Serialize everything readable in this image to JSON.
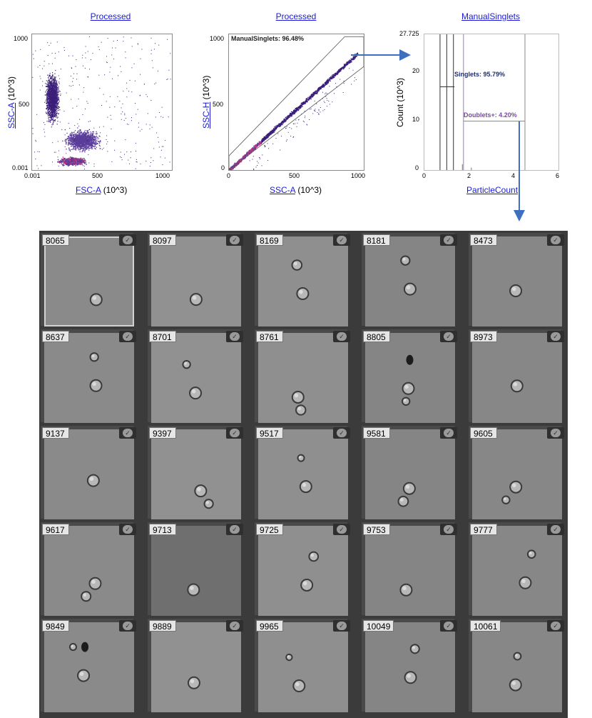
{
  "plots": {
    "p1": {
      "title": "Processed",
      "xlabel_link": "FSC-A",
      "xlabel_unit": "(10^3)",
      "ylabel_link": "SSC-A",
      "ylabel_unit": "(10^3)",
      "xticks": [
        "0.001",
        "500",
        "1000"
      ],
      "yticks": [
        "1000",
        "500",
        "0.001"
      ]
    },
    "p2": {
      "title": "Processed",
      "xlabel_link": "SSC-A",
      "xlabel_unit": "(10^3)",
      "ylabel_link": "SSC-H",
      "ylabel_unit": "(10^3)",
      "xticks": [
        "0",
        "500",
        "1000"
      ],
      "yticks": [
        "1000",
        "500",
        "0"
      ],
      "gate_label": "ManualSinglets: 96.48%"
    },
    "p3": {
      "title": "ManualSinglets",
      "xlabel_link": "ParticleCount",
      "ylabel": "Count (10^3)",
      "xticks": [
        "0",
        "2",
        "4",
        "6"
      ],
      "yticks": [
        "27.725",
        "20",
        "10",
        "0"
      ],
      "singlets_label": "Singlets: 95.79%",
      "doublets_label": "Doublets+: 4.20%"
    }
  },
  "chart_data": [
    {
      "type": "scatter",
      "title": "Processed",
      "xlabel": "FSC-A (10^3)",
      "ylabel": "SSC-A (10^3)",
      "xlim": [
        0.001,
        1050
      ],
      "ylim": [
        0.001,
        1050
      ]
    },
    {
      "type": "scatter",
      "title": "Processed",
      "xlabel": "SSC-A (10^3)",
      "ylabel": "SSC-H (10^3)",
      "xlim": [
        0,
        1050
      ],
      "ylim": [
        0,
        1050
      ],
      "gates": [
        {
          "name": "ManualSinglets",
          "percent": 96.48
        }
      ]
    },
    {
      "type": "bar",
      "title": "ManualSinglets",
      "xlabel": "ParticleCount",
      "ylabel": "Count (10^3)",
      "xlim": [
        0,
        6
      ],
      "ylim": [
        0,
        27.725
      ],
      "categories": [
        "0.7",
        "1",
        "1.3",
        "1.7",
        "2.1"
      ],
      "values": [
        27.725,
        27.725,
        27.725,
        1.2,
        0.5
      ],
      "gates": [
        {
          "name": "Singlets",
          "percent": 95.79
        },
        {
          "name": "Doublets+",
          "percent": 4.2
        }
      ]
    }
  ],
  "gallery": {
    "tiles": [
      {
        "id": "8065"
      },
      {
        "id": "8097"
      },
      {
        "id": "8169"
      },
      {
        "id": "8181"
      },
      {
        "id": "8473"
      },
      {
        "id": "8637"
      },
      {
        "id": "8701"
      },
      {
        "id": "8761"
      },
      {
        "id": "8805"
      },
      {
        "id": "8973"
      },
      {
        "id": "9137"
      },
      {
        "id": "9397"
      },
      {
        "id": "9517"
      },
      {
        "id": "9581"
      },
      {
        "id": "9605"
      },
      {
        "id": "9617"
      },
      {
        "id": "9713"
      },
      {
        "id": "9725"
      },
      {
        "id": "9753"
      },
      {
        "id": "9777"
      },
      {
        "id": "9849"
      },
      {
        "id": "9889"
      },
      {
        "id": "9965"
      },
      {
        "id": "10049"
      },
      {
        "id": "10061"
      }
    ],
    "selected": "8065"
  },
  "colors": {
    "link": "#1a1ad6",
    "arrow": "#3f6fbf",
    "gate_text": "#1f2d6e",
    "doublets_text": "#7a4aa0",
    "scatter_dense": "#d03a7a",
    "scatter_mid": "#5a3c9a",
    "scatter_sparse": "#3b1f7a"
  }
}
